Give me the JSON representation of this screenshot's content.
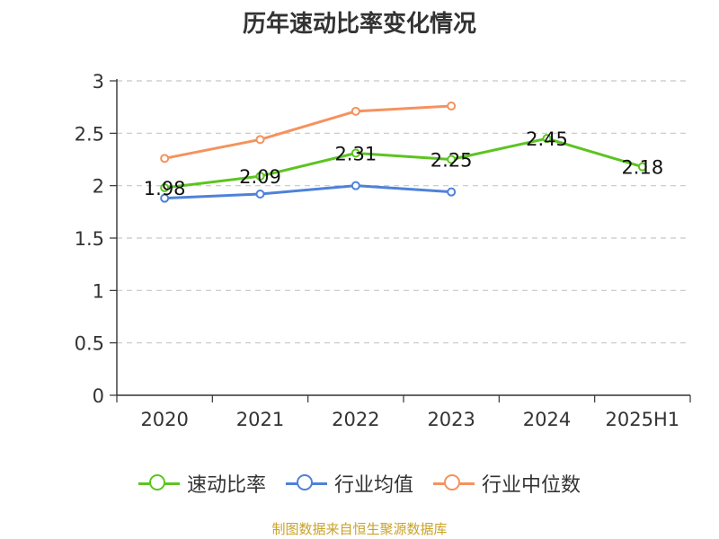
{
  "chart_data": {
    "type": "line",
    "title": "历年速动比率变化情况",
    "categories": [
      "2020",
      "2021",
      "2022",
      "2023",
      "2024",
      "2025H1"
    ],
    "ylim": [
      0,
      3
    ],
    "yticks": [
      "0",
      "0.5",
      "1",
      "1.5",
      "2",
      "2.5",
      "3"
    ],
    "grid": true,
    "legend_position": "bottom",
    "series": [
      {
        "name": "速动比率",
        "color": "#5cc421",
        "values": [
          1.98,
          2.09,
          2.31,
          2.25,
          2.45,
          2.18
        ],
        "labels": [
          "1.98",
          "2.09",
          "2.31",
          "2.25",
          "2.45",
          "2.18"
        ]
      },
      {
        "name": "行业均值",
        "color": "#4e82d9",
        "values": [
          1.88,
          1.92,
          2.0,
          1.94,
          null,
          null
        ]
      },
      {
        "name": "行业中位数",
        "color": "#f5925e",
        "values": [
          2.26,
          2.44,
          2.71,
          2.76,
          null,
          null
        ]
      }
    ]
  },
  "source_note": "制图数据来自恒生聚源数据库"
}
